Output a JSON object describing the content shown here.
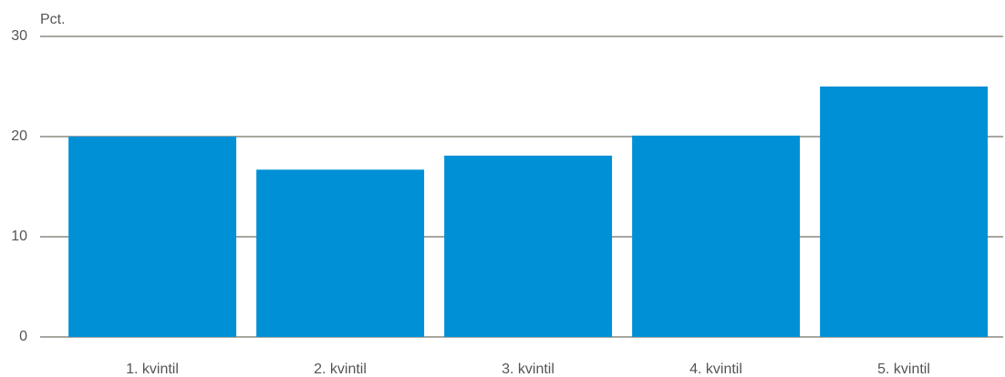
{
  "chart_data": {
    "type": "bar",
    "y_label": "Pct.",
    "categories": [
      "1. kvintil",
      "2. kvintil",
      "3. kvintil",
      "4. kvintil",
      "5. kvintil"
    ],
    "values": [
      20.0,
      16.7,
      18.1,
      20.1,
      25.0
    ],
    "color": "#0090d6",
    "ylim": [
      0,
      30
    ],
    "yticks": [
      0,
      10,
      20,
      30
    ],
    "grid": true
  }
}
